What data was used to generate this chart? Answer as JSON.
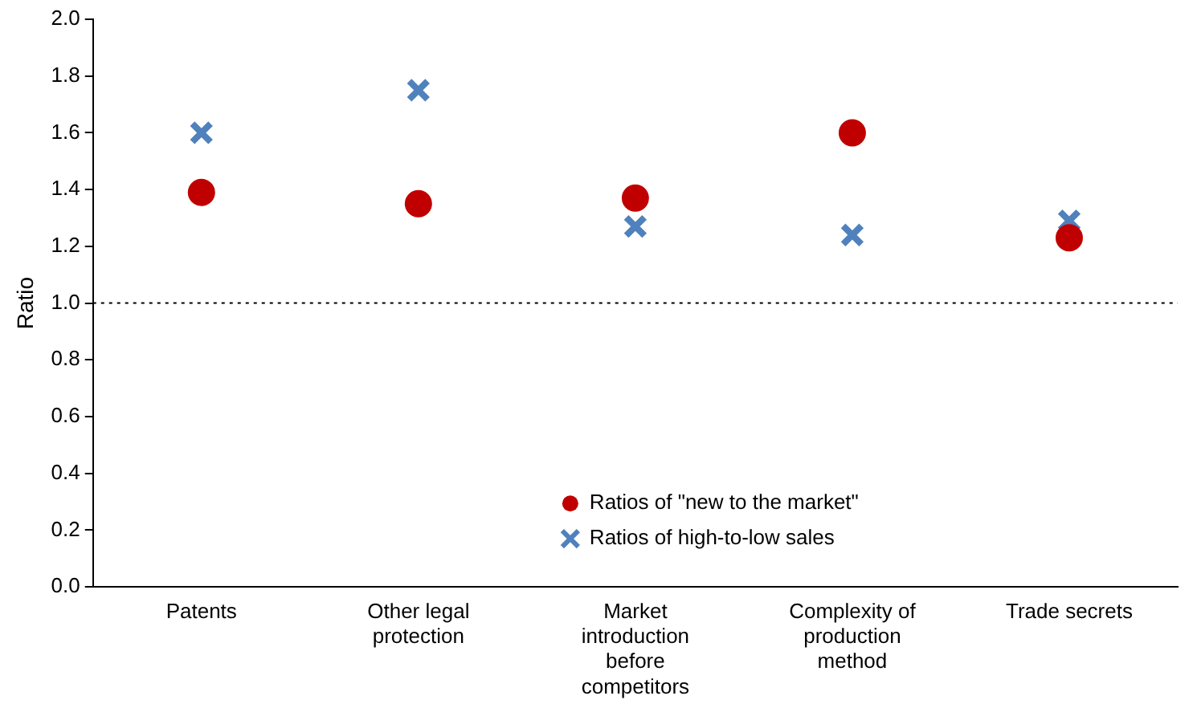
{
  "chart_data": {
    "type": "scatter",
    "ylabel": "Ratio",
    "categories": [
      "Patents",
      "Other legal protection",
      "Market introduction before competitors",
      "Complexity of production method",
      "Trade secrets"
    ],
    "series": [
      {
        "name": "Ratios of \"new to the market\"",
        "color": "#c00000",
        "marker": "circle",
        "values": [
          1.39,
          1.35,
          1.37,
          1.6,
          1.23
        ]
      },
      {
        "name": "Ratios of high-to-low sales",
        "color": "#4f81bd",
        "marker": "cross",
        "values": [
          1.6,
          1.75,
          1.27,
          1.24,
          1.29
        ]
      }
    ],
    "ylim": [
      0,
      2
    ],
    "yticks": [
      {
        "value": 0,
        "label": "0.0"
      },
      {
        "value": 0.2,
        "label": "0.2"
      },
      {
        "value": 0.4,
        "label": "0.4"
      },
      {
        "value": 0.6,
        "label": "0.6"
      },
      {
        "value": 0.8,
        "label": "0.8"
      },
      {
        "value": 1,
        "label": "1.0"
      },
      {
        "value": 1.2,
        "label": "1.2"
      },
      {
        "value": 1.4,
        "label": "1.4"
      },
      {
        "value": 1.6,
        "label": "1.6"
      },
      {
        "value": 1.8,
        "label": "1.8"
      },
      {
        "value": 2,
        "label": "2.0"
      }
    ],
    "grid": false,
    "legend": "bottom",
    "ref_lines": [
      {
        "axis": "y",
        "value": 1,
        "line_style": "dotted",
        "color": "#000000"
      }
    ]
  }
}
